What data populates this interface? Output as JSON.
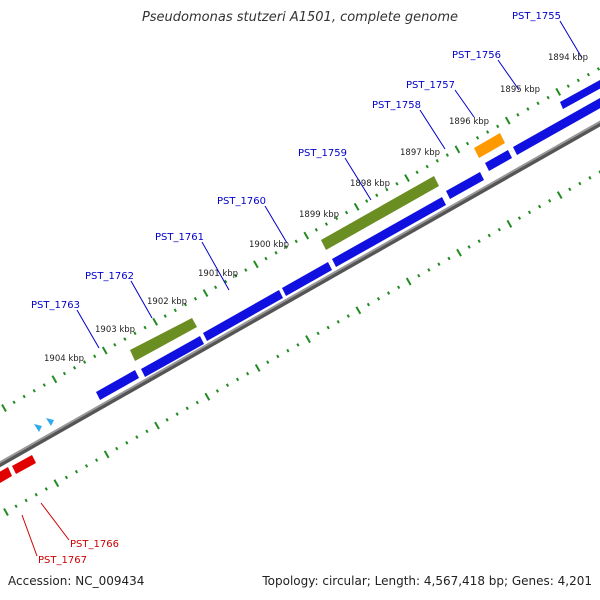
{
  "header": {
    "title": "Pseudomonas stutzeri A1501, complete genome"
  },
  "footer": {
    "accession": "Accession: NC_009434",
    "summary": "Topology: circular; Length: 4,567,418 bp; Genes: 4,201"
  },
  "colors": {
    "forward_gene": "#1010e0",
    "rrna": "#6b8e23",
    "orange_gene": "#ff9900",
    "reverse_gene": "#e00000",
    "backbone": "#888888",
    "tick": "#228b22",
    "label_blue": "#0000cc",
    "label_red": "#cc0000"
  },
  "scale": {
    "labels": [
      "1894 kbp",
      "1895 kbp",
      "1896 kbp",
      "1897 kbp",
      "1898 kbp",
      "1899 kbp",
      "1900 kbp",
      "1901 kbp",
      "1902 kbp",
      "1903 kbp",
      "1904 kbp"
    ]
  },
  "gene_labels": [
    {
      "text": "PST_1755",
      "strand": "forward"
    },
    {
      "text": "PST_1756",
      "strand": "forward"
    },
    {
      "text": "PST_1757",
      "strand": "forward"
    },
    {
      "text": "PST_1758",
      "strand": "forward"
    },
    {
      "text": "PST_1759",
      "strand": "forward"
    },
    {
      "text": "PST_1760",
      "strand": "forward"
    },
    {
      "text": "PST_1761",
      "strand": "forward"
    },
    {
      "text": "PST_1762",
      "strand": "forward"
    },
    {
      "text": "PST_1763",
      "strand": "forward"
    },
    {
      "text": "PST_1766",
      "strand": "reverse"
    },
    {
      "text": "PST_1767",
      "strand": "reverse"
    }
  ]
}
